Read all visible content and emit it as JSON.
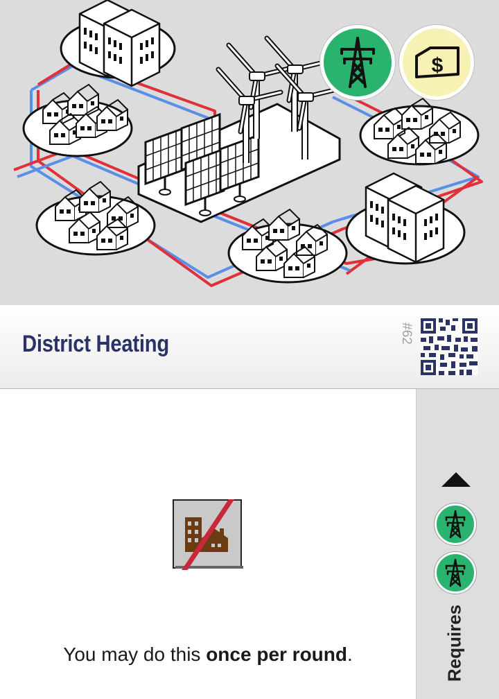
{
  "card": {
    "title": "District Heating",
    "number": "#62",
    "category_icons": [
      {
        "icon": "power-pylon-icon",
        "color": "#2ab36e"
      },
      {
        "icon": "money-bill-icon",
        "color": "#f7f2b3"
      }
    ],
    "illustration": {
      "subject": "city-block-with-wind-turbines-solar-panels-and-heating-pipes",
      "pipe_colors": {
        "hot": "#e0303a",
        "cold": "#5a8fe8"
      }
    }
  },
  "effect": {
    "icon": "no-buildings-icon",
    "text_before": "You may do this ",
    "text_bold": "once per round",
    "text_after": "."
  },
  "requirements": {
    "label": "Requires",
    "items": [
      {
        "icon": "power-pylon-icon",
        "color": "#2ab36e"
      },
      {
        "icon": "power-pylon-icon",
        "color": "#2ab36e"
      }
    ]
  },
  "colors": {
    "title": "#2b3266",
    "grid_green": "#2ab36e",
    "money_yellow": "#f7f2b3",
    "slash_red": "#c9283a",
    "building_brown": "#6b3b12"
  }
}
